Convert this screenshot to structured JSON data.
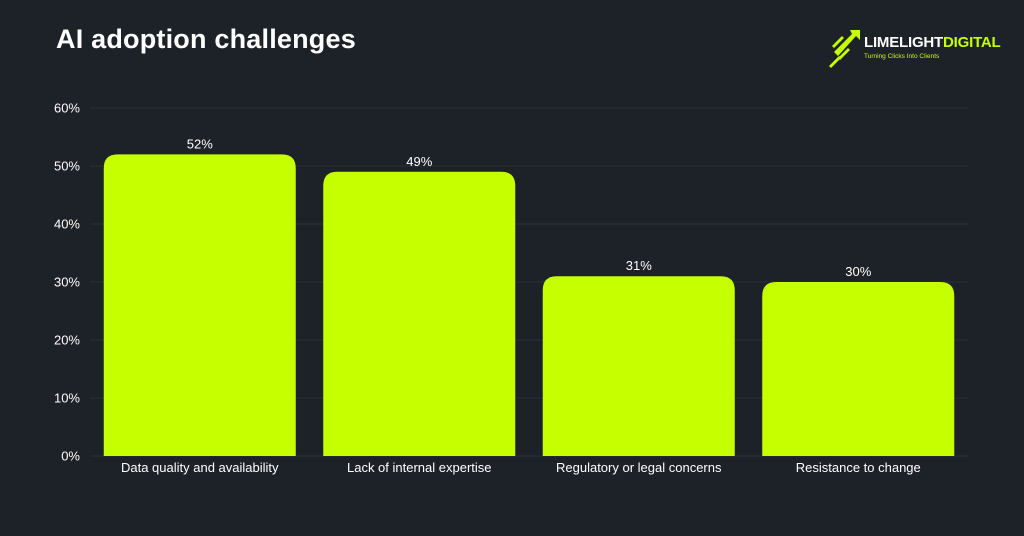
{
  "header": {
    "title": "AI adoption challenges"
  },
  "logo": {
    "brand_first": "LIMELIGHT",
    "brand_second": "DIGITAL",
    "tagline": "Turning Clicks Into Clients",
    "icon": "rocket-arrow-icon"
  },
  "colors": {
    "background": "#1d2128",
    "bar": "#c6ff00",
    "text": "#ffffff",
    "grid": "#2c313a"
  },
  "chart_data": {
    "type": "bar",
    "title": "AI adoption challenges",
    "xlabel": "",
    "ylabel": "",
    "categories": [
      "Data quality and availability",
      "Lack of internal expertise",
      "Regulatory or legal concerns",
      "Resistance to change"
    ],
    "values": [
      52,
      49,
      31,
      30
    ],
    "data_labels": [
      "52%",
      "49%",
      "31%",
      "30%"
    ],
    "ylim": [
      0,
      60
    ],
    "yticks": [
      0,
      10,
      20,
      30,
      40,
      50,
      60
    ],
    "ytick_labels": [
      "0%",
      "10%",
      "20%",
      "30%",
      "40%",
      "50%",
      "60%"
    ],
    "grid": true,
    "legend": "none"
  }
}
